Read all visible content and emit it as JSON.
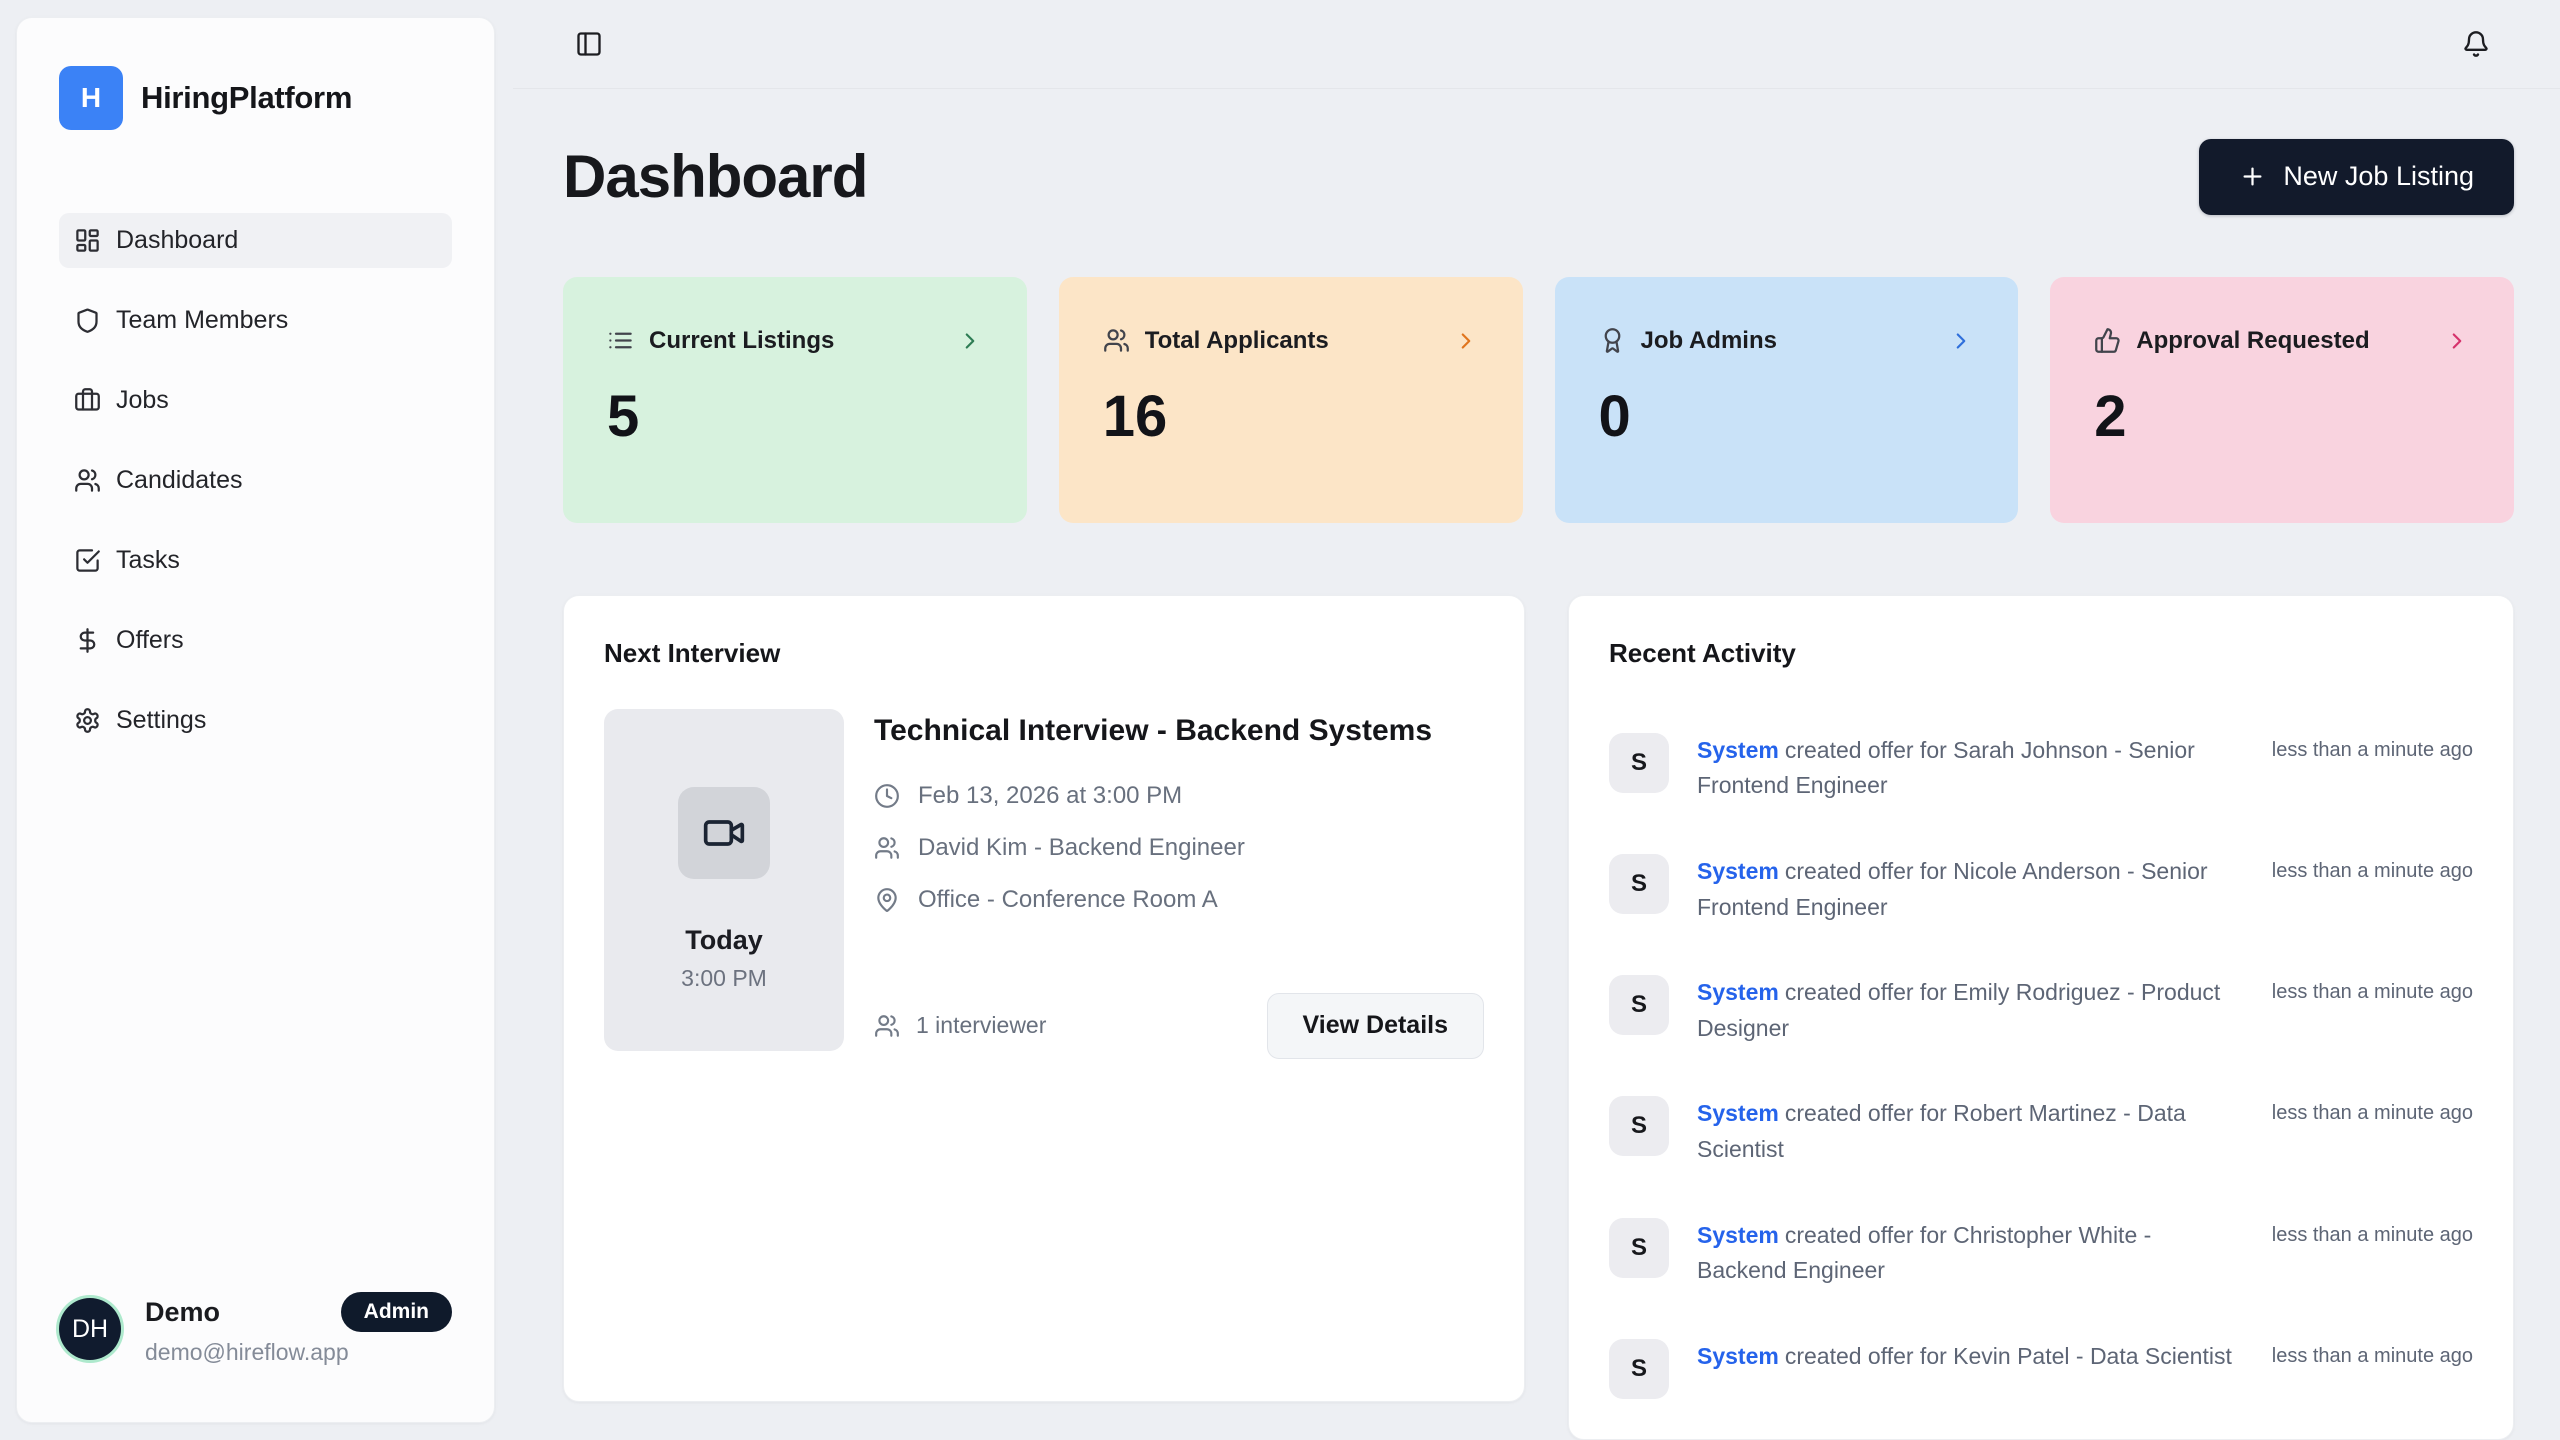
{
  "app": {
    "name": "HiringPlatform",
    "logo_letter": "H",
    "logo_color": "#3b82f6"
  },
  "sidebar": {
    "items": [
      {
        "label": "Dashboard",
        "icon": "dashboard",
        "active": true
      },
      {
        "label": "Team Members",
        "icon": "shield",
        "active": false
      },
      {
        "label": "Jobs",
        "icon": "briefcase",
        "active": false
      },
      {
        "label": "Candidates",
        "icon": "users",
        "active": false
      },
      {
        "label": "Tasks",
        "icon": "square-check",
        "active": false
      },
      {
        "label": "Offers",
        "icon": "dollar",
        "active": false
      },
      {
        "label": "Settings",
        "icon": "gear",
        "active": false
      }
    ],
    "user": {
      "initials": "DH",
      "name": "Demo",
      "role": "Admin",
      "email": "demo@hireflow.app"
    }
  },
  "topbar": {
    "toggle_icon": "panel-left",
    "notifications_icon": "bell"
  },
  "header": {
    "title": "Dashboard",
    "new_job_button": "New Job Listing"
  },
  "stats": [
    {
      "label": "Current Listings",
      "value": "5",
      "icon": "list",
      "bg": "#d7f2de",
      "accent": "#2e7d54"
    },
    {
      "label": "Total Applicants",
      "value": "16",
      "icon": "users",
      "bg": "#fce5c7",
      "accent": "#e0751f"
    },
    {
      "label": "Job Admins",
      "value": "0",
      "icon": "award",
      "bg": "#c9e2f8",
      "accent": "#2f6fdb"
    },
    {
      "label": "Approval Requested",
      "value": "2",
      "icon": "thumbs-up",
      "bg": "#f9d3df",
      "accent": "#d6336c"
    }
  ],
  "next_interview": {
    "section_title": "Next Interview",
    "schedule": {
      "day": "Today",
      "time": "3:00 PM",
      "icon": "video"
    },
    "title": "Technical Interview - Backend Systems",
    "meta": [
      {
        "icon": "clock",
        "text": "Feb 13, 2026 at 3:00 PM"
      },
      {
        "icon": "users",
        "text": "David Kim - Backend Engineer"
      },
      {
        "icon": "map-pin",
        "text": "Office - Conference Room A"
      }
    ],
    "interviewers": "1 interviewer",
    "view_details_button": "View Details"
  },
  "recent_activity": {
    "title": "Recent Activity",
    "items": [
      {
        "avatar": "S",
        "actor": "System",
        "action": "created offer for Sarah Johnson - Senior Frontend Engineer",
        "time": "less than a minute ago"
      },
      {
        "avatar": "S",
        "actor": "System",
        "action": "created offer for Nicole Anderson - Senior Frontend Engineer",
        "time": "less than a minute ago"
      },
      {
        "avatar": "S",
        "actor": "System",
        "action": "created offer for Emily Rodriguez - Product Designer",
        "time": "less than a minute ago"
      },
      {
        "avatar": "S",
        "actor": "System",
        "action": "created offer for Robert Martinez - Data Scientist",
        "time": "less than a minute ago"
      },
      {
        "avatar": "S",
        "actor": "System",
        "action": "created offer for Christopher White - Backend Engineer",
        "time": "less than a minute ago"
      },
      {
        "avatar": "S",
        "actor": "System",
        "action": "created offer for Kevin Patel - Data Scientist",
        "time": "less than a minute ago"
      }
    ]
  }
}
